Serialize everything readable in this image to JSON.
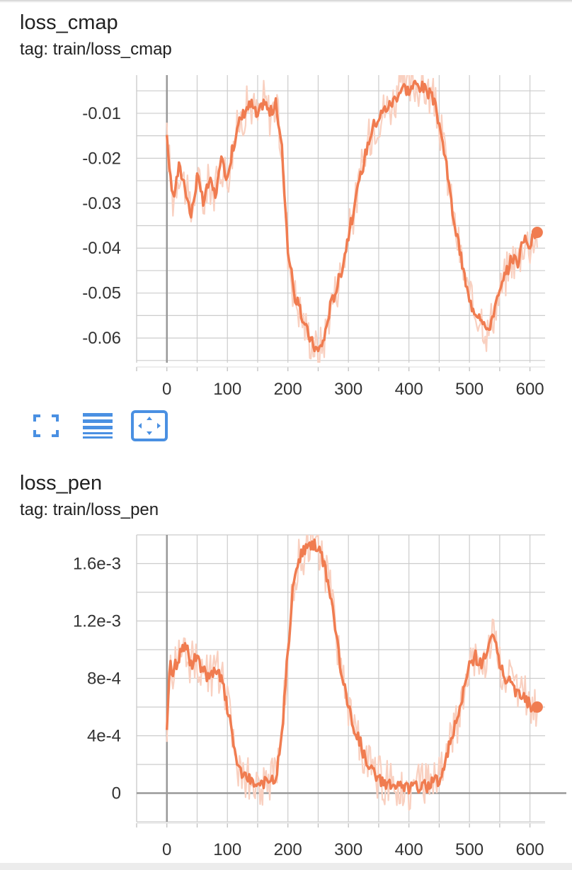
{
  "cards": [
    {
      "title": "loss_cmap",
      "tag": "tag: train/loss_cmap"
    },
    {
      "title": "loss_pen",
      "tag": "tag: train/loss_pen"
    }
  ],
  "toolbar": {
    "fullscreen_icon": "fullscreen-icon",
    "data_table_icon": "data-table-icon",
    "fit_domain_icon": "fit-domain-icon"
  },
  "colors": {
    "series": "#f07c50",
    "series_raw": "#f9d0c0",
    "grid": "#cccccc",
    "zero_axis": "#999999",
    "icon_blue": "#4a90e2"
  },
  "chart_data": [
    {
      "type": "line",
      "title": "loss_cmap",
      "subtitle": "tag: train/loss_cmap",
      "xlabel": "",
      "ylabel": "",
      "xlim": [
        -50,
        625
      ],
      "ylim": [
        -0.0655,
        -0.0015
      ],
      "x_ticks": [
        0,
        100,
        200,
        300,
        400,
        500,
        600
      ],
      "x_tick_labels": [
        "0",
        "100",
        "200",
        "300",
        "400",
        "500",
        "600"
      ],
      "y_ticks": [
        -0.01,
        -0.02,
        -0.03,
        -0.04,
        -0.05,
        -0.06
      ],
      "y_tick_labels": [
        "-0.01",
        "-0.02",
        "-0.03",
        "-0.04",
        "-0.05",
        "-0.06"
      ],
      "grid": true,
      "series": [
        {
          "x": [
            0,
            10,
            20,
            30,
            40,
            50,
            60,
            70,
            80,
            90,
            100,
            110,
            120,
            130,
            140,
            150,
            160,
            170,
            180,
            190,
            200,
            210,
            220,
            230,
            240,
            250,
            260,
            270,
            280,
            290,
            300,
            310,
            320,
            330,
            340,
            350,
            360,
            370,
            380,
            390,
            400,
            410,
            420,
            430,
            440,
            450,
            460,
            470,
            480,
            490,
            500,
            510,
            520,
            530,
            540,
            550,
            560,
            570,
            580,
            590,
            600,
            612
          ],
          "y": [
            -0.016,
            -0.029,
            -0.022,
            -0.026,
            -0.033,
            -0.024,
            -0.03,
            -0.025,
            -0.028,
            -0.021,
            -0.024,
            -0.017,
            -0.012,
            -0.009,
            -0.008,
            -0.011,
            -0.007,
            -0.01,
            -0.008,
            -0.018,
            -0.04,
            -0.05,
            -0.054,
            -0.058,
            -0.061,
            -0.063,
            -0.06,
            -0.053,
            -0.049,
            -0.044,
            -0.037,
            -0.031,
            -0.024,
            -0.018,
            -0.013,
            -0.011,
            -0.009,
            -0.008,
            -0.006,
            -0.004,
            -0.005,
            -0.0035,
            -0.004,
            -0.005,
            -0.007,
            -0.012,
            -0.02,
            -0.03,
            -0.038,
            -0.045,
            -0.052,
            -0.054,
            -0.055,
            -0.059,
            -0.054,
            -0.05,
            -0.046,
            -0.042,
            -0.043,
            -0.038,
            -0.039,
            -0.0365
          ]
        }
      ]
    },
    {
      "type": "line",
      "title": "loss_pen",
      "subtitle": "tag: train/loss_pen",
      "xlabel": "",
      "ylabel": "",
      "xlim": [
        -50,
        625
      ],
      "ylim": [
        -0.0002,
        0.0018
      ],
      "x_ticks": [
        0,
        100,
        200,
        300,
        400,
        500,
        600
      ],
      "x_tick_labels": [
        "0",
        "100",
        "200",
        "300",
        "400",
        "500",
        "600"
      ],
      "y_ticks": [
        0,
        0.0004,
        0.0008,
        0.0012,
        0.0016
      ],
      "y_tick_labels": [
        "0",
        "4e-4",
        "8e-4",
        "1.2e-3",
        "1.6e-3"
      ],
      "grid": true,
      "series": [
        {
          "x": [
            0,
            5,
            10,
            20,
            30,
            40,
            50,
            60,
            70,
            80,
            90,
            100,
            110,
            120,
            130,
            140,
            150,
            160,
            170,
            180,
            190,
            200,
            210,
            220,
            230,
            240,
            250,
            260,
            270,
            280,
            290,
            300,
            310,
            320,
            330,
            340,
            350,
            360,
            370,
            380,
            390,
            400,
            410,
            420,
            430,
            440,
            450,
            460,
            470,
            480,
            490,
            500,
            510,
            520,
            530,
            540,
            550,
            560,
            570,
            580,
            590,
            600,
            612
          ],
          "y": [
            0.0004,
            0.0009,
            0.00085,
            0.00095,
            0.00105,
            0.0009,
            0.00095,
            0.00085,
            0.0008,
            0.00085,
            0.0008,
            0.0006,
            0.00035,
            0.00015,
            0.0001,
            8e-05,
            6e-05,
            8e-05,
            7e-05,
            0.0001,
            0.0004,
            0.001,
            0.0015,
            0.00165,
            0.0017,
            0.00175,
            0.0017,
            0.0016,
            0.0014,
            0.0011,
            0.0008,
            0.0006,
            0.00045,
            0.00035,
            0.0002,
            0.00015,
            0.0001,
            8e-05,
            6e-05,
            5e-05,
            4e-05,
            4e-05,
            4e-05,
            5e-05,
            5e-05,
            7e-05,
            0.0001,
            0.0002,
            0.0004,
            0.0005,
            0.0007,
            0.0009,
            0.00095,
            0.0009,
            0.001,
            0.0011,
            0.0009,
            0.0008,
            0.00075,
            0.0007,
            0.0007,
            0.0006,
            0.0006
          ]
        }
      ]
    }
  ]
}
